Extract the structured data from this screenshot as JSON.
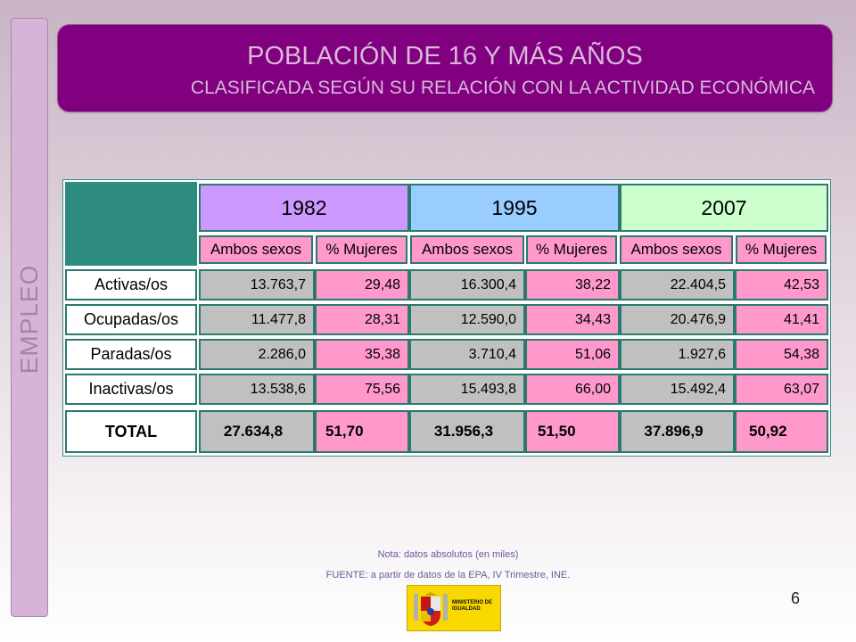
{
  "side_label": "EMPLEO",
  "title": {
    "main": "POBLACIÓN DE 16 Y MÁS AÑOS",
    "sub": "CLASIFICADA SEGÚN SU RELACIÓN CON LA ACTIVIDAD ECONÓMICA"
  },
  "table": {
    "years": [
      "1982",
      "1995",
      "2007"
    ],
    "subheaders": [
      "Ambos sexos",
      "% Mujeres",
      "Ambos sexos",
      "% Mujeres",
      "Ambos sexos",
      "% Mujeres"
    ],
    "rows": [
      {
        "label": "Activas/os",
        "values": [
          "13.763,7",
          "29,48",
          "16.300,4",
          "38,22",
          "22.404,5",
          "42,53"
        ]
      },
      {
        "label": "Ocupadas/os",
        "values": [
          "11.477,8",
          "28,31",
          "12.590,0",
          "34,43",
          "20.476,9",
          "41,41"
        ]
      },
      {
        "label": "Paradas/os",
        "values": [
          "2.286,0",
          "35,38",
          "3.710,4",
          "51,06",
          "1.927,6",
          "54,38"
        ]
      },
      {
        "label": "Inactivas/os",
        "values": [
          "13.538,6",
          "75,56",
          "15.493,8",
          "66,00",
          "15.492,4",
          "63,07"
        ]
      }
    ],
    "total": {
      "label": "TOTAL",
      "values": [
        "27.634,8",
        "51,70",
        "31.956,3",
        "51,50",
        "37.896,9",
        "50,92"
      ]
    }
  },
  "note": "Nota:   datos absolutos (en miles)",
  "source": "FUENTE: a partir de datos de la EPA, IV Trimestre, INE.",
  "logo": {
    "text": "MINISTERIO DE IGUALDAD",
    "color": "#f8d800"
  },
  "page_number": "6",
  "colors": {
    "title_bg": "#800080",
    "year_1982": "#cc99ff",
    "year_1995": "#99ccff",
    "year_2007": "#ccffcc",
    "pink": "#ff99cc",
    "grey": "#c0c0c0",
    "corner": "#2e8b80"
  }
}
